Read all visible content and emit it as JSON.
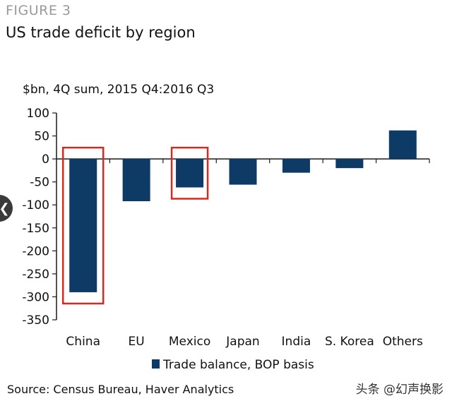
{
  "figure_label": "FIGURE 3",
  "source": "Source: Census Bureau, Haver Analytics",
  "watermark": "头条 @幻声换影",
  "nav_icon": "chevron-left-icon",
  "colors": {
    "bar": "#0d3b66",
    "highlight": "#d42a20",
    "axis": "#1a1a1a"
  },
  "chart_data": {
    "type": "bar",
    "title": "US trade deficit by region",
    "ylabel": "$bn, 4Q sum, 2015 Q4:2016 Q3",
    "xlabel": "",
    "categories": [
      "China",
      "EU",
      "Mexico",
      "Japan",
      "India",
      "S. Korea",
      "Others"
    ],
    "series": [
      {
        "name": "Trade balance, BOP basis",
        "values": [
          -290,
          -92,
          -62,
          -56,
          -30,
          -20,
          62
        ]
      }
    ],
    "ylim": [
      -350,
      100
    ],
    "yticks": [
      100,
      50,
      0,
      -50,
      -100,
      -150,
      -200,
      -250,
      -300,
      -350
    ],
    "highlighted": [
      "China",
      "Mexico"
    ],
    "legend": "bottom-center",
    "grid": false
  }
}
